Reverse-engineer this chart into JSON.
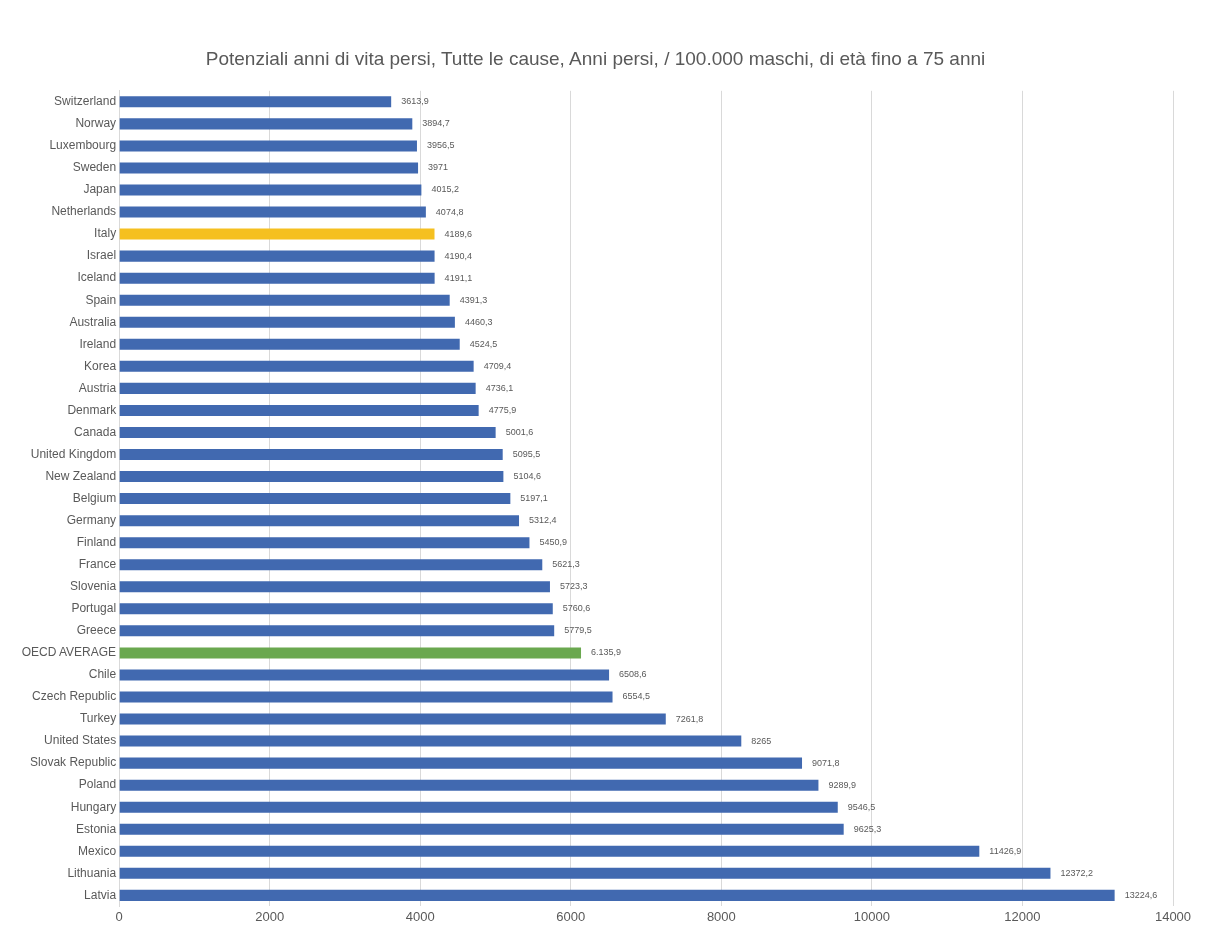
{
  "chart_data": {
    "type": "bar",
    "orientation": "horizontal",
    "title": "Potenziali anni di vita persi, Tutte le cause, Anni persi, / 100.000 maschi, di età fino a 75 anni",
    "categories": [
      "Switzerland",
      "Norway",
      "Luxembourg",
      "Sweden",
      "Japan",
      "Netherlands",
      "Italy",
      "Israel",
      "Iceland",
      "Spain",
      "Australia",
      "Ireland",
      "Korea",
      "Austria",
      "Denmark",
      "Canada",
      "United Kingdom",
      "New Zealand",
      "Belgium",
      "Germany",
      "Finland",
      "France",
      "Slovenia",
      "Portugal",
      "Greece",
      "OECD AVERAGE",
      "Chile",
      "Czech Republic",
      "Turkey",
      "United States",
      "Slovak Republic",
      "Poland",
      "Hungary",
      "Estonia",
      "Mexico",
      "Lithuania",
      "Latvia"
    ],
    "values": [
      3613.9,
      3894.7,
      3956.5,
      3971,
      4015.2,
      4074.8,
      4189.6,
      4190.4,
      4191.1,
      4391.3,
      4460.3,
      4524.5,
      4709.4,
      4736.1,
      4775.9,
      5001.6,
      5095.5,
      5104.6,
      5197.1,
      5312.4,
      5450.9,
      5621.3,
      5723.3,
      5760.6,
      5779.5,
      6135.9,
      6508.6,
      6554.5,
      7261.8,
      8265,
      9071.8,
      9289.9,
      9546.5,
      9625.3,
      11426.9,
      12372.2,
      13224.6
    ],
    "value_labels": [
      "3613,9",
      "3894,7",
      "3956,5",
      "3971",
      "4015,2",
      "4074,8",
      "4189,6",
      "4190,4",
      "4191,1",
      "4391,3",
      "4460,3",
      "4524,5",
      "4709,4",
      "4736,1",
      "4775,9",
      "5001,6",
      "5095,5",
      "5104,6",
      "5197,1",
      "5312,4",
      "5450,9",
      "5621,3",
      "5723,3",
      "5760,6",
      "5779,5",
      "6.135,9",
      "6508,6",
      "6554,5",
      "7261,8",
      "8265",
      "9071,8",
      "9289,9",
      "9546,5",
      "9625,3",
      "11426,9",
      "12372,2",
      "13224,6"
    ],
    "colors": [
      "#4169b0",
      "#4169b0",
      "#4169b0",
      "#4169b0",
      "#4169b0",
      "#4169b0",
      "#f5c020",
      "#4169b0",
      "#4169b0",
      "#4169b0",
      "#4169b0",
      "#4169b0",
      "#4169b0",
      "#4169b0",
      "#4169b0",
      "#4169b0",
      "#4169b0",
      "#4169b0",
      "#4169b0",
      "#4169b0",
      "#4169b0",
      "#4169b0",
      "#4169b0",
      "#4169b0",
      "#4169b0",
      "#6aa84f",
      "#4169b0",
      "#4169b0",
      "#4169b0",
      "#4169b0",
      "#4169b0",
      "#4169b0",
      "#4169b0",
      "#4169b0",
      "#4169b0",
      "#4169b0",
      "#4169b0"
    ],
    "xlim": [
      0,
      14000
    ],
    "xticks": [
      0,
      2000,
      4000,
      6000,
      8000,
      10000,
      12000,
      14000
    ],
    "grid": "x",
    "legend": false
  }
}
